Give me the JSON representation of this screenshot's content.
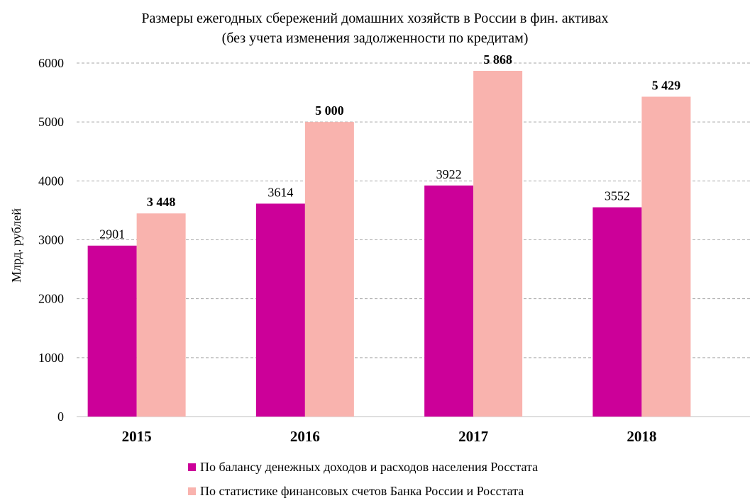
{
  "chart_data": {
    "type": "bar",
    "title": "Размеры ежегодных сбережений домашних хозяйств в России в фин. активах",
    "subtitle": "(без учета изменения задолженности по кредитам)",
    "ylabel": "Млрд. рублей",
    "xlabel": "",
    "ylim": [
      0,
      6000
    ],
    "yticks": [
      "0",
      "1000",
      "2000",
      "3000",
      "4000",
      "5000",
      "6000"
    ],
    "categories": [
      "2015",
      "2016",
      "2017",
      "2018"
    ],
    "series": [
      {
        "name": "По балансу денежных доходов и расходов населения Росстата",
        "values": [
          2901,
          3614,
          3922,
          3552
        ],
        "labels": [
          "2901",
          "3614",
          "3922",
          "3552"
        ],
        "color": "#CC0099",
        "label_bold": false
      },
      {
        "name": "По статистике финансовых счетов Банка России и Росстата",
        "values": [
          3448,
          5000,
          5868,
          5429
        ],
        "labels": [
          "3 448",
          "5 000",
          "5 868",
          "5 429"
        ],
        "color": "#F9B3AE",
        "label_bold": true
      }
    ],
    "grid": true,
    "legend_position": "bottom"
  }
}
